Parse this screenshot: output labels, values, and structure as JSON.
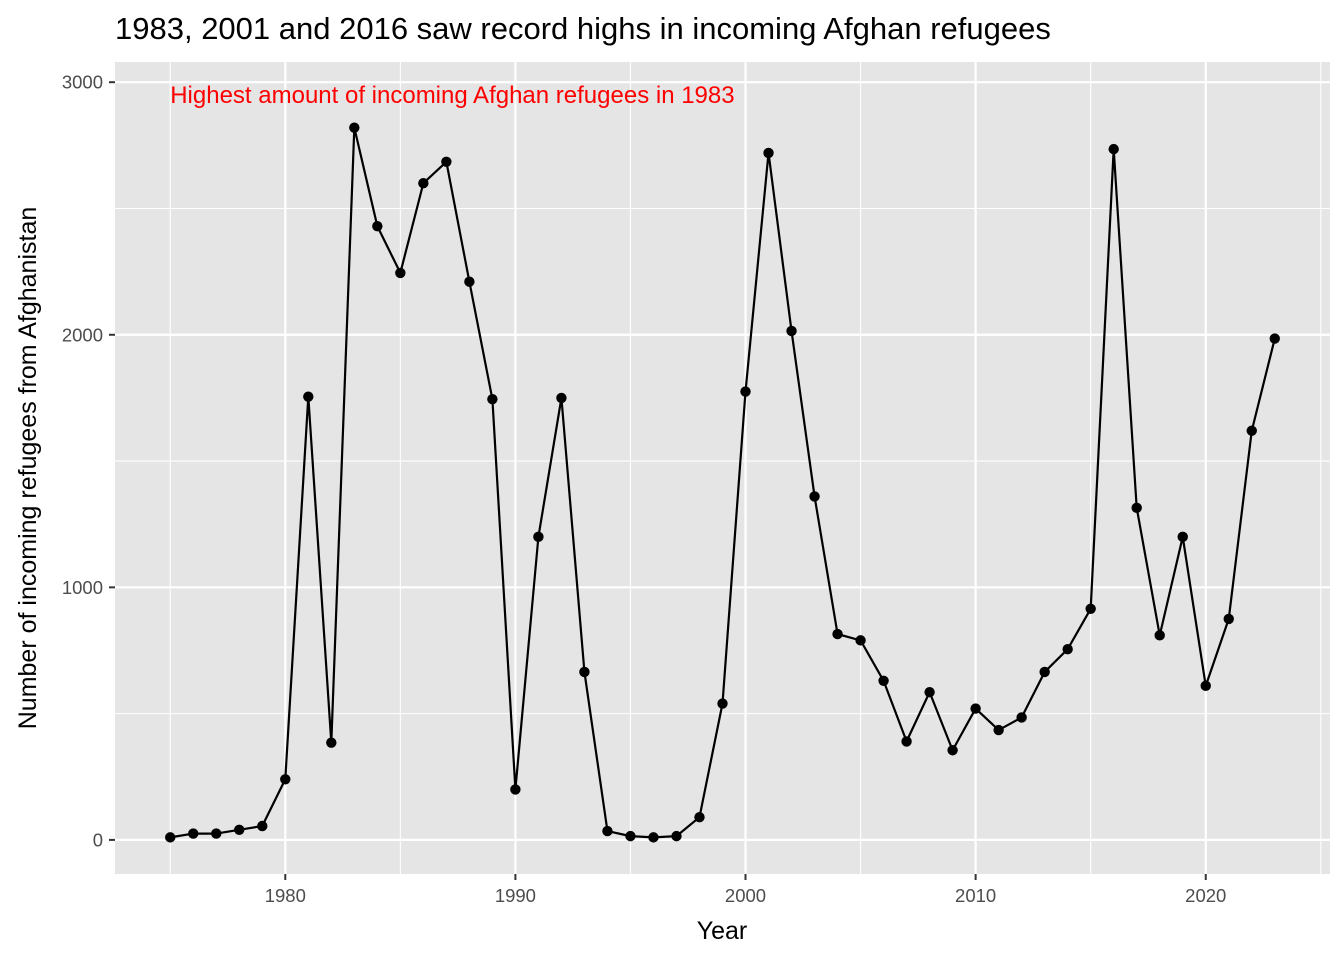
{
  "chart_data": {
    "type": "line",
    "title": "1983, 2001 and 2016 saw record highs in incoming Afghan refugees",
    "xlabel": "Year",
    "ylabel": "Number of incoming refugees from Afghanistan",
    "xlim": [
      1972.6,
      2025.4
    ],
    "ylim": [
      -135,
      3080
    ],
    "x_ticks": [
      1980,
      1990,
      2000,
      2010,
      2020
    ],
    "y_ticks": [
      0,
      1000,
      2000,
      3000
    ],
    "grid": true,
    "legend": "none",
    "annotation": {
      "text": "Highest amount of incoming Afghan refugees in 1983",
      "x": 1975,
      "y": 2950,
      "color": "#ff0000"
    },
    "colors": {
      "panel": "#e5e5e5",
      "grid": "#ffffff",
      "line": "#000000"
    },
    "series": [
      {
        "x": [
          1975,
          1976,
          1977,
          1978,
          1979,
          1980,
          1981,
          1982,
          1983,
          1984,
          1985,
          1986,
          1987,
          1988,
          1989,
          1990,
          1991,
          1992,
          1993,
          1994,
          1995,
          1996,
          1997,
          1998,
          1999,
          2000,
          2001,
          2002,
          2003,
          2004,
          2005,
          2006,
          2007,
          2008,
          2009,
          2010,
          2011,
          2012,
          2013,
          2014,
          2015,
          2016,
          2017,
          2018,
          2019,
          2020,
          2021,
          2022,
          2023
        ],
        "values": [
          10,
          25,
          25,
          40,
          55,
          240,
          1755,
          385,
          2820,
          2430,
          2245,
          2600,
          2685,
          2210,
          1745,
          200,
          1200,
          1750,
          665,
          35,
          15,
          10,
          15,
          90,
          540,
          1775,
          2720,
          2015,
          1360,
          815,
          790,
          630,
          390,
          585,
          355,
          520,
          435,
          485,
          665,
          755,
          915,
          2735,
          1315,
          810,
          1200,
          610,
          875,
          1620,
          1985
        ]
      }
    ]
  }
}
